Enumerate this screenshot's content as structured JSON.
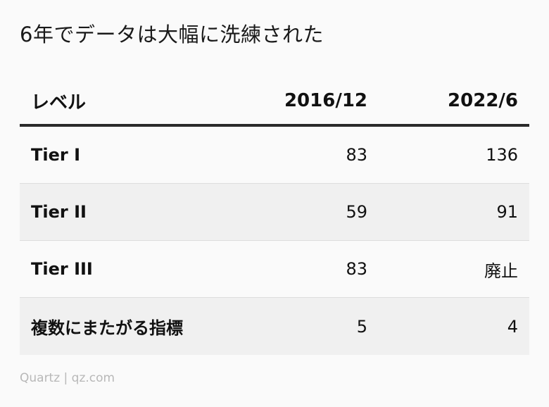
{
  "title": "6年でデータは大幅に洗練された",
  "source": "Quartz | qz.com",
  "colors": {
    "background": "#fafafa",
    "row_alt": "#f0f0f0",
    "header_rule": "#2a2a2a",
    "source_text": "#b8b8b8"
  },
  "chart_data": {
    "type": "table",
    "title": "6年でデータは大幅に洗練された",
    "columns": [
      "レベル",
      "2016/12",
      "2022/6"
    ],
    "rows": [
      [
        "Tier I",
        "83",
        "136"
      ],
      [
        "Tier II",
        "59",
        "91"
      ],
      [
        "Tier III",
        "83",
        "廃止"
      ],
      [
        "複数にまたがる指標",
        "5",
        "4"
      ]
    ]
  }
}
